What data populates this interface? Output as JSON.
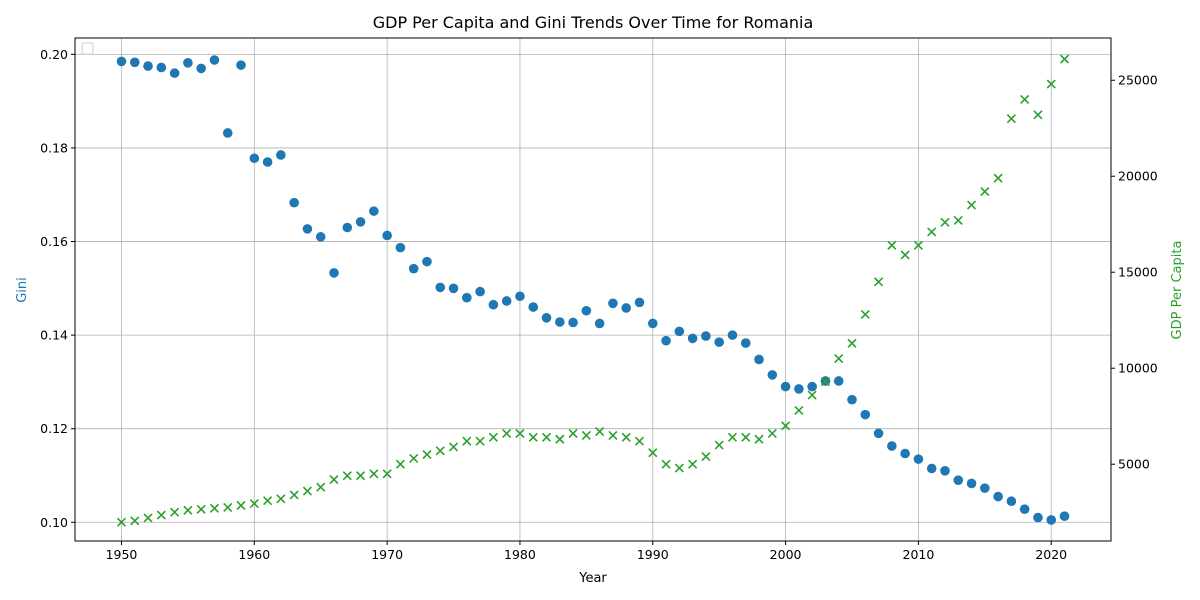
{
  "chart_data": {
    "type": "scatter",
    "title": "GDP Per Capita and Gini Trends Over Time for Romania",
    "xlabel": "Year",
    "ylabel_left": "Gini",
    "ylabel_right": "GDP Per Capita",
    "xlim": [
      1946.5,
      2024.5
    ],
    "ylim_left": [
      0.096,
      0.2035
    ],
    "ylim_right": [
      1000,
      27200
    ],
    "x_ticks": [
      1950,
      1960,
      1970,
      1980,
      1990,
      2000,
      2010,
      2020
    ],
    "y_ticks_left": [
      0.1,
      0.12,
      0.14,
      0.16,
      0.18,
      0.2
    ],
    "y_ticks_left_labels": [
      "0.10",
      "0.12",
      "0.14",
      "0.16",
      "0.18",
      "0.20"
    ],
    "y_ticks_right": [
      5000,
      10000,
      15000,
      20000,
      25000
    ],
    "grid": true,
    "legend": "top-left",
    "colors": {
      "gini": "#1f77b4",
      "gdp": "#2ca02c"
    },
    "x": [
      1950,
      1951,
      1952,
      1953,
      1954,
      1955,
      1956,
      1957,
      1958,
      1959,
      1960,
      1961,
      1962,
      1963,
      1964,
      1965,
      1966,
      1967,
      1968,
      1969,
      1970,
      1971,
      1972,
      1973,
      1974,
      1975,
      1976,
      1977,
      1978,
      1979,
      1980,
      1981,
      1982,
      1983,
      1984,
      1985,
      1986,
      1987,
      1988,
      1989,
      1990,
      1991,
      1992,
      1993,
      1994,
      1995,
      1996,
      1997,
      1998,
      1999,
      2000,
      2001,
      2002,
      2003,
      2004,
      2005,
      2006,
      2007,
      2008,
      2009,
      2010,
      2011,
      2012,
      2013,
      2014,
      2015,
      2016,
      2017,
      2018,
      2019,
      2020,
      2021
    ],
    "series": [
      {
        "axis": "left",
        "marker": "circle",
        "values": [
          0.1985,
          0.1983,
          0.1975,
          0.1972,
          0.196,
          0.1982,
          0.197,
          0.1988,
          0.1832,
          0.1977,
          0.1778,
          0.177,
          0.1785,
          0.1683,
          0.1627,
          0.161,
          0.1533,
          0.163,
          0.1642,
          0.1665,
          0.1613,
          0.1587,
          0.1542,
          0.1557,
          0.1502,
          0.15,
          0.148,
          0.1493,
          0.1465,
          0.1473,
          0.1483,
          0.146,
          0.1437,
          0.1428,
          0.1427,
          0.1452,
          0.1425,
          0.1468,
          0.1458,
          0.147,
          0.1425,
          0.1388,
          0.1408,
          0.1393,
          0.1398,
          0.1385,
          0.14,
          0.1383,
          0.1348,
          0.1315,
          0.129,
          0.1285,
          0.129,
          0.1302,
          0.1302,
          0.1262,
          0.123,
          0.119,
          0.1163,
          0.1147,
          0.1135,
          0.1115,
          0.111,
          0.109,
          0.1083,
          0.1073,
          0.1055,
          0.1045,
          0.1028,
          0.101,
          0.1005,
          0.1013
        ]
      },
      {
        "axis": "right",
        "marker": "x",
        "values": [
          1980,
          2050,
          2200,
          2350,
          2500,
          2600,
          2650,
          2700,
          2750,
          2850,
          2950,
          3100,
          3200,
          3400,
          3600,
          3800,
          4200,
          4400,
          4400,
          4500,
          4500,
          5000,
          5300,
          5500,
          5700,
          5900,
          6200,
          6200,
          6400,
          6600,
          6600,
          6400,
          6400,
          6300,
          6600,
          6500,
          6700,
          6500,
          6400,
          6200,
          5600,
          5000,
          4800,
          5000,
          5400,
          6000,
          6400,
          6400,
          6300,
          6600,
          7000,
          7800,
          8600,
          9300,
          10500,
          11300,
          12800,
          14500,
          16400,
          15900,
          16400,
          17100,
          17600,
          17700,
          18500,
          19200,
          19900,
          23000,
          24000,
          23200,
          24800,
          26100
        ]
      }
    ]
  }
}
